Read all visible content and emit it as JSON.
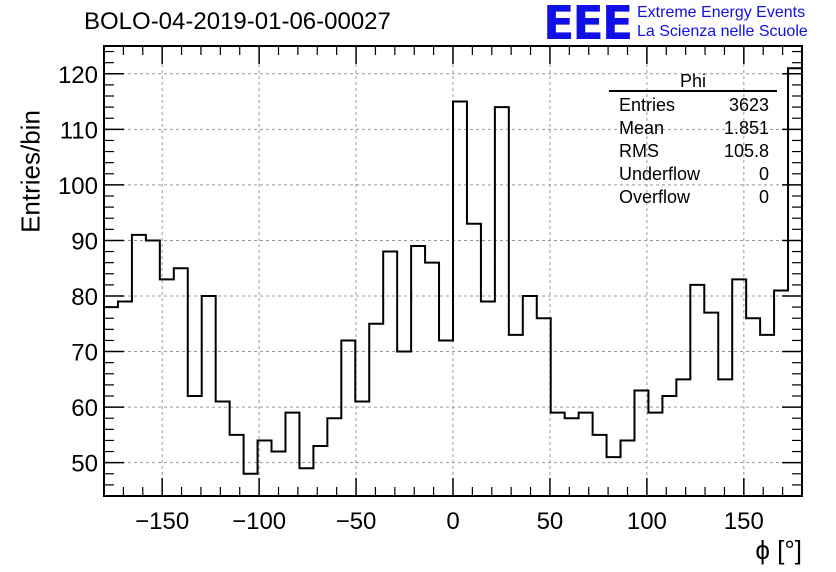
{
  "header": {
    "title": "BOLO-04-2019-01-06-00027",
    "logo_mark": "EEE",
    "logo_line1": "Extreme Energy Events",
    "logo_line2": "La Scienza nelle Scuole",
    "logo_color": "#1010e6"
  },
  "stats_box": {
    "title": "Phi",
    "rows": [
      {
        "label": "Entries",
        "value": "3623"
      },
      {
        "label": "Mean",
        "value": "1.851"
      },
      {
        "label": "RMS",
        "value": "105.8"
      },
      {
        "label": "Underflow",
        "value": "0"
      },
      {
        "label": "Overflow",
        "value": "0"
      }
    ]
  },
  "chart_data": {
    "type": "histogram",
    "title": "BOLO-04-2019-01-06-00027",
    "xlabel": "ϕ [°]",
    "ylabel": "Entries/bin",
    "xlim": [
      -180,
      180
    ],
    "ylim": [
      44,
      125
    ],
    "bin_width": 7.2,
    "grid": true,
    "xticks": [
      -150,
      -100,
      -50,
      0,
      50,
      100,
      150
    ],
    "xtick_labels": [
      "−150",
      "−100",
      "−50",
      "0",
      "50",
      "100",
      "150"
    ],
    "yticks": [
      50,
      60,
      70,
      80,
      90,
      100,
      110,
      120
    ],
    "ytick_labels": [
      "50",
      "60",
      "70",
      "80",
      "90",
      "100",
      "110",
      "120"
    ],
    "values": [
      78,
      79,
      91,
      90,
      83,
      85,
      62,
      80,
      61,
      55,
      48,
      54,
      52,
      59,
      49,
      53,
      58,
      72,
      61,
      75,
      88,
      70,
      89,
      86,
      72,
      115,
      93,
      79,
      114,
      73,
      80,
      76,
      59,
      58,
      59,
      55,
      51,
      54,
      63,
      59,
      62,
      65,
      82,
      77,
      65,
      83,
      76,
      73,
      81,
      121
    ]
  }
}
